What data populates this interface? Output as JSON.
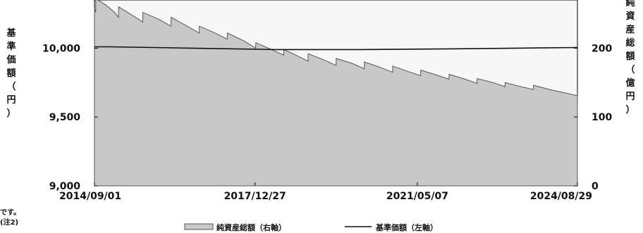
{
  "chart_data": {
    "type": "area",
    "x_ticks": [
      "2014/09/01",
      "2017/12/27",
      "2021/05/07",
      "2024/08/29"
    ],
    "ylabel_left": "基準価額（円）",
    "ylabel_right": "純資産総額（億円）",
    "y_left": {
      "min": 9000,
      "max": 10350,
      "ticks": [
        9000,
        9500,
        10000
      ],
      "tick_labels": [
        "9,000",
        "9,500",
        "10,000"
      ]
    },
    "y_right": {
      "min": 0,
      "max": 270,
      "ticks": [
        0,
        100,
        200
      ],
      "tick_labels": [
        "0",
        "100",
        "200"
      ]
    },
    "series": [
      {
        "name": "純資産総額（右軸）",
        "axis": "right",
        "style": "area",
        "color": "#c8c8c8",
        "x": [
          "2014/09/01",
          "2014/09/10",
          "2014/09/11",
          "2014/12/01",
          "2015/02/01",
          "2015/03/01",
          "2015/03/02",
          "2015/05/01",
          "2015/08/01",
          "2015/09/01",
          "2015/09/02",
          "2016/01/01",
          "2016/04/01",
          "2016/04/02",
          "2016/08/01",
          "2016/11/01",
          "2016/11/02",
          "2017/03/01",
          "2017/06/01",
          "2017/06/02",
          "2017/10/01",
          "2018/01/01",
          "2018/01/02",
          "2018/05/01",
          "2018/08/01",
          "2018/08/02",
          "2018/11/01",
          "2019/02/01",
          "2019/02/02",
          "2019/06/01",
          "2019/09/01",
          "2019/09/02",
          "2020/01/01",
          "2020/04/01",
          "2020/04/02",
          "2020/08/01",
          "2020/11/01",
          "2020/11/02",
          "2021/03/01",
          "2021/06/01",
          "2021/06/02",
          "2021/10/01",
          "2022/01/01",
          "2022/01/02",
          "2022/05/01",
          "2022/08/01",
          "2022/08/02",
          "2022/12/01",
          "2023/03/01",
          "2023/03/02",
          "2023/07/01",
          "2023/10/01",
          "2023/10/02",
          "2024/02/01",
          "2024/05/01",
          "2024/08/29"
        ],
        "values": [
          258,
          252,
          272,
          262,
          252,
          245,
          260,
          253,
          242,
          238,
          252,
          242,
          232,
          245,
          232,
          222,
          232,
          222,
          213,
          222,
          211,
          200,
          208,
          198,
          190,
          198,
          190,
          181,
          192,
          183,
          175,
          185,
          178,
          170,
          180,
          172,
          165,
          174,
          166,
          160,
          168,
          161,
          155,
          162,
          155,
          149,
          156,
          150,
          144,
          150,
          144,
          140,
          146,
          140,
          136,
          131
        ]
      },
      {
        "name": "基準価額（左軸）",
        "axis": "left",
        "style": "line",
        "color": "#111111",
        "x": [
          "2014/09/01",
          "2015/01/01",
          "2016/09/01",
          "2018/06/01",
          "2020/03/01",
          "2022/01/01",
          "2023/06/01",
          "2024/08/29"
        ],
        "values": [
          10010,
          10010,
          10000,
          9990,
          9990,
          9995,
          10000,
          10005
        ]
      }
    ],
    "legend": {
      "placement": "bottom",
      "entries": [
        "純資産総額（右軸）",
        "基準価額（左軸）"
      ]
    },
    "grid": false
  },
  "notes": [
    "です。",
    "(注2)"
  ]
}
